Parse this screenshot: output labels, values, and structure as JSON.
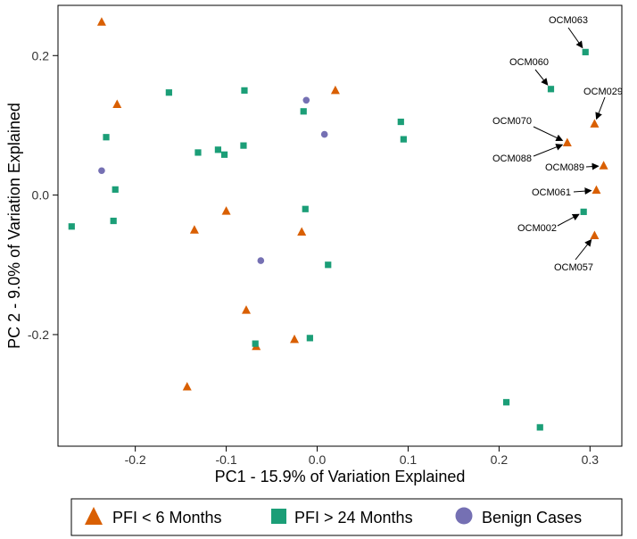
{
  "chart_data": {
    "type": "scatter",
    "xlabel": "PC1 - 15.9% of Variation Explained",
    "ylabel": "PC 2 - 9.0% of Variation Explained",
    "xlim": [
      -0.285,
      0.335
    ],
    "ylim": [
      -0.36,
      0.272
    ],
    "x_ticks": [
      {
        "value": -0.2,
        "label": "-0.2"
      },
      {
        "value": -0.1,
        "label": "-0.1"
      },
      {
        "value": 0.0,
        "label": "0.0"
      },
      {
        "value": 0.1,
        "label": "0.1"
      },
      {
        "value": 0.2,
        "label": "0.2"
      },
      {
        "value": 0.3,
        "label": "0.3"
      }
    ],
    "y_ticks": [
      {
        "value": 0.2,
        "label": "0.2"
      },
      {
        "value": 0.0,
        "label": "0.0"
      },
      {
        "value": -0.2,
        "label": "-0.2"
      }
    ],
    "grid": false,
    "legend_placement": "bottom",
    "series": [
      {
        "name": "PFI < 6 Months",
        "marker": "triangle",
        "color": "#D95F02",
        "points": [
          {
            "x": -0.237,
            "y": 0.248
          },
          {
            "x": -0.22,
            "y": 0.13
          },
          {
            "x": 0.02,
            "y": 0.15
          },
          {
            "x": -0.1,
            "y": -0.023
          },
          {
            "x": -0.135,
            "y": -0.05
          },
          {
            "x": -0.017,
            "y": -0.053
          },
          {
            "x": -0.078,
            "y": -0.165
          },
          {
            "x": -0.025,
            "y": -0.207
          },
          {
            "x": -0.067,
            "y": -0.217
          },
          {
            "x": -0.143,
            "y": -0.275
          },
          {
            "x": 0.275,
            "y": 0.075
          },
          {
            "x": 0.305,
            "y": 0.102
          },
          {
            "x": 0.315,
            "y": 0.042
          },
          {
            "x": 0.307,
            "y": 0.007
          },
          {
            "x": 0.305,
            "y": -0.058
          }
        ]
      },
      {
        "name": "PFI > 24 Months",
        "marker": "square",
        "color": "#1B9E77",
        "points": [
          {
            "x": 0.295,
            "y": 0.205
          },
          {
            "x": 0.257,
            "y": 0.152
          },
          {
            "x": 0.293,
            "y": -0.024
          },
          {
            "x": -0.163,
            "y": 0.147
          },
          {
            "x": -0.08,
            "y": 0.15
          },
          {
            "x": -0.015,
            "y": 0.12
          },
          {
            "x": 0.092,
            "y": 0.105
          },
          {
            "x": 0.095,
            "y": 0.08
          },
          {
            "x": -0.232,
            "y": 0.083
          },
          {
            "x": -0.131,
            "y": 0.061
          },
          {
            "x": -0.109,
            "y": 0.065
          },
          {
            "x": -0.102,
            "y": 0.058
          },
          {
            "x": -0.081,
            "y": 0.071
          },
          {
            "x": -0.222,
            "y": 0.008
          },
          {
            "x": -0.224,
            "y": -0.037
          },
          {
            "x": -0.013,
            "y": -0.02
          },
          {
            "x": -0.27,
            "y": -0.045
          },
          {
            "x": 0.012,
            "y": -0.1
          },
          {
            "x": -0.068,
            "y": -0.213
          },
          {
            "x": -0.008,
            "y": -0.205
          },
          {
            "x": 0.208,
            "y": -0.297
          },
          {
            "x": 0.245,
            "y": -0.333
          }
        ]
      },
      {
        "name": "Benign Cases",
        "marker": "circle",
        "color": "#7570B3",
        "points": [
          {
            "x": -0.012,
            "y": 0.136
          },
          {
            "x": 0.008,
            "y": 0.087
          },
          {
            "x": -0.237,
            "y": 0.035
          },
          {
            "x": -0.062,
            "y": -0.094
          }
        ]
      }
    ],
    "annotations": [
      {
        "label": "OCM063",
        "point": {
          "x": 0.295,
          "y": 0.205
        }
      },
      {
        "label": "OCM060",
        "point": {
          "x": 0.257,
          "y": 0.152
        }
      },
      {
        "label": "OCM029",
        "point": {
          "x": 0.305,
          "y": 0.102
        }
      },
      {
        "label": "OCM070",
        "point": {
          "x": 0.275,
          "y": 0.075
        }
      },
      {
        "label": "OCM088",
        "point": {
          "x": 0.275,
          "y": 0.075
        }
      },
      {
        "label": "OCM089",
        "point": {
          "x": 0.315,
          "y": 0.042
        }
      },
      {
        "label": "OCM061",
        "point": {
          "x": 0.307,
          "y": 0.007
        }
      },
      {
        "label": "OCM002",
        "point": {
          "x": 0.293,
          "y": -0.024
        }
      },
      {
        "label": "OCM057",
        "point": {
          "x": 0.305,
          "y": -0.058
        }
      }
    ]
  }
}
